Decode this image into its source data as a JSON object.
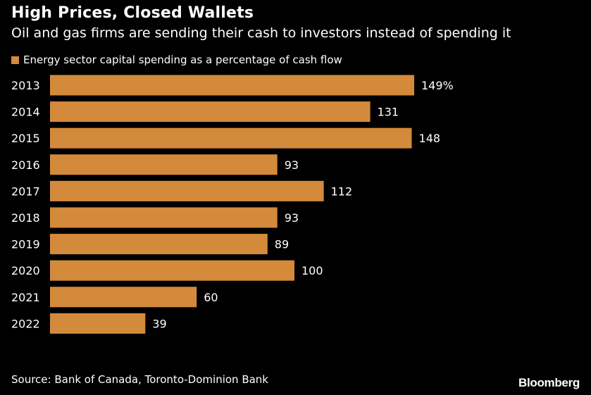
{
  "title": "High Prices, Closed Wallets",
  "subtitle": "Oil and gas firms are sending their cash to investors instead of spending it",
  "colors": {
    "background": "#000000",
    "bar": "#D48A3B",
    "text": "#ffffff"
  },
  "source": "Source: Bank of Canada, Toronto-Dominion Bank",
  "brand": "Bloomberg",
  "chart_data": {
    "type": "bar",
    "orientation": "horizontal",
    "categories": [
      "2013",
      "2014",
      "2015",
      "2016",
      "2017",
      "2018",
      "2019",
      "2020",
      "2021",
      "2022"
    ],
    "series": [
      {
        "name": "Energy sector capital spending as a percentage of cash flow",
        "values": [
          149,
          131,
          148,
          93,
          112,
          93,
          89,
          100,
          60,
          39
        ]
      }
    ],
    "data_labels": [
      "149%",
      "131",
      "148",
      "93",
      "112",
      "93",
      "89",
      "100",
      "60",
      "39"
    ],
    "legend_position": "top-left",
    "grid": false
  }
}
